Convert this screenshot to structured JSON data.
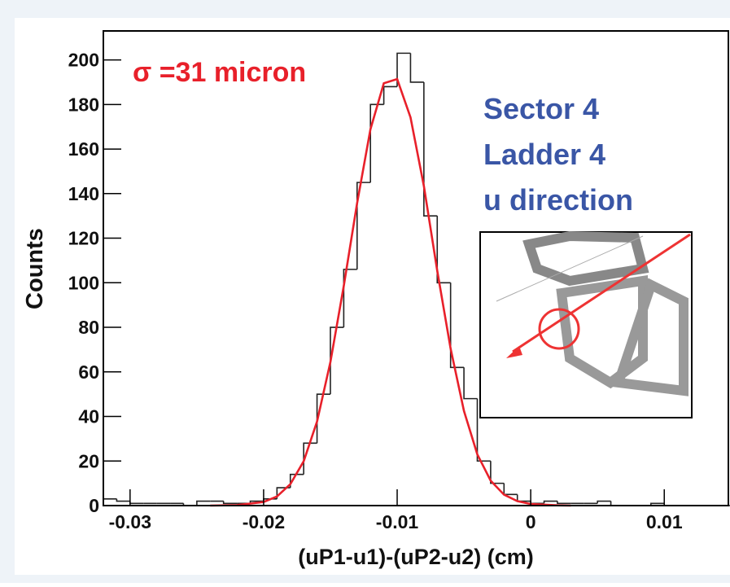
{
  "chart_data": {
    "type": "histogram",
    "xlabel": "(uP1-u1)-(uP2-u2) (cm)",
    "ylabel": "Counts",
    "annotations": {
      "sigma": "σ =31 micron",
      "sector": "Sector 4",
      "ladder": "Ladder 4",
      "direction": "u direction"
    },
    "bins": [
      -0.032,
      -0.031,
      -0.03,
      -0.029,
      -0.028,
      -0.027,
      -0.026,
      -0.025,
      -0.024,
      -0.023,
      -0.022,
      -0.021,
      -0.02,
      -0.019,
      -0.018,
      -0.017,
      -0.016,
      -0.015,
      -0.014,
      -0.013,
      -0.012,
      -0.011,
      -0.01,
      -0.009,
      -0.008,
      -0.007,
      -0.006,
      -0.005,
      -0.004,
      -0.003,
      -0.002,
      -0.001,
      0,
      0.001,
      0.002,
      0.003,
      0.004,
      0.005,
      0.006,
      0.007,
      0.008,
      0.009,
      0.01,
      0.011,
      0.012,
      0.013,
      0.014,
      0.015
    ],
    "values": [
      3,
      2,
      1,
      1,
      1,
      1,
      0,
      2,
      2,
      1,
      1,
      2,
      3,
      8,
      14,
      28,
      50,
      80,
      106,
      145,
      180,
      188,
      203,
      190,
      130,
      100,
      62,
      48,
      20,
      10,
      5,
      2,
      1,
      2,
      1,
      1,
      1,
      2,
      0,
      0,
      0,
      1,
      0,
      0,
      0,
      0,
      0
    ],
    "color": "#222222",
    "fit": {
      "color": "#e8202a",
      "x": [
        -0.024,
        -0.022,
        -0.02,
        -0.019,
        -0.018,
        -0.017,
        -0.016,
        -0.015,
        -0.014,
        -0.013,
        -0.012,
        -0.011,
        -0.01,
        -0.009,
        -0.008,
        -0.007,
        -0.006,
        -0.005,
        -0.004,
        -0.003,
        -0.002,
        -0.001,
        0,
        0.002,
        0.003
      ],
      "values": [
        0,
        0.2,
        1.6,
        4.1,
        9.6,
        19.9,
        37.7,
        64.4,
        98.5,
        135.7,
        168.9,
        189.5,
        191.4,
        174.2,
        143.4,
        105.4,
        70.5,
        42.5,
        23,
        11.2,
        4.9,
        2,
        0.7,
        0.1,
        0
      ]
    },
    "xlim": [
      -0.032,
      0.0148
    ],
    "ylim": [
      0,
      213
    ],
    "xticks": [
      -0.03,
      -0.02,
      -0.01,
      0,
      0.01
    ],
    "yticks": [
      0,
      20,
      40,
      60,
      80,
      100,
      120,
      140,
      160,
      180,
      200
    ]
  }
}
